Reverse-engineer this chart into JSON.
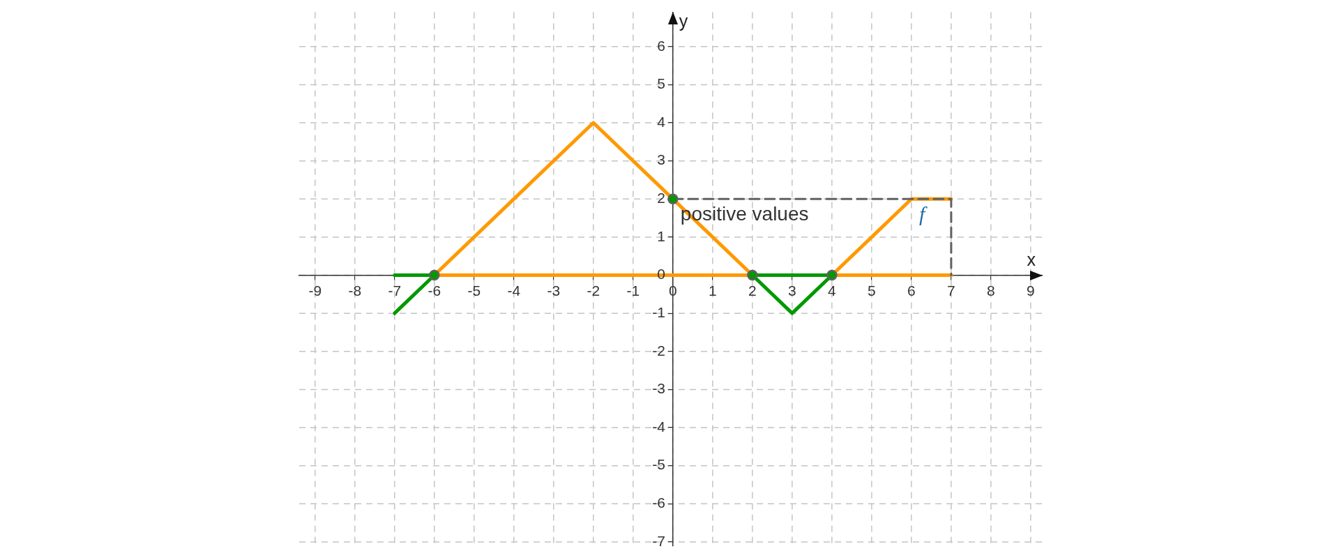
{
  "chart_data": {
    "type": "line",
    "xlabel": "x",
    "ylabel": "y",
    "xlim": [
      -9.4,
      9.3
    ],
    "ylim": [
      -7.1,
      6.9
    ],
    "xticks": [
      -9,
      -8,
      -7,
      -6,
      -5,
      -4,
      -3,
      -2,
      -1,
      0,
      1,
      2,
      3,
      4,
      5,
      6,
      7,
      8,
      9
    ],
    "yticks": [
      -7,
      -6,
      -5,
      -4,
      -3,
      -2,
      -1,
      0,
      1,
      2,
      3,
      4,
      5,
      6
    ],
    "grid": true,
    "legend": false,
    "series": [
      {
        "color": "#ff9900",
        "x": [
          -6,
          2
        ],
        "values": [
          0,
          0
        ]
      },
      {
        "color": "#ff9900",
        "x": [
          4,
          7
        ],
        "values": [
          0,
          0
        ]
      },
      {
        "color": "#009900",
        "x": [
          -7,
          -6
        ],
        "values": [
          0,
          0
        ]
      },
      {
        "color": "#009900",
        "x": [
          2,
          4
        ],
        "values": [
          0,
          0
        ]
      },
      {
        "color": "#ff9900",
        "x": [
          -6,
          -2,
          2
        ],
        "values": [
          0,
          4,
          0
        ]
      },
      {
        "name": "f",
        "color": "#ff9900",
        "x": [
          4,
          6,
          7
        ],
        "values": [
          0,
          2,
          2
        ]
      },
      {
        "color": "#009900",
        "x": [
          -7,
          -6
        ],
        "values": [
          -1,
          0
        ]
      },
      {
        "color": "#009900",
        "x": [
          2,
          3,
          4
        ],
        "values": [
          0,
          -1,
          0
        ]
      },
      {
        "name": "positive values",
        "color": "#616161",
        "x": [
          0,
          7,
          7
        ],
        "values": [
          2,
          2,
          0
        ],
        "line_style": "dashed"
      },
      {
        "type": "scatter",
        "color": "#009900",
        "x": [
          -6,
          2,
          4,
          0
        ],
        "values": [
          0,
          0,
          0,
          2
        ],
        "marker": "circle"
      }
    ]
  }
}
